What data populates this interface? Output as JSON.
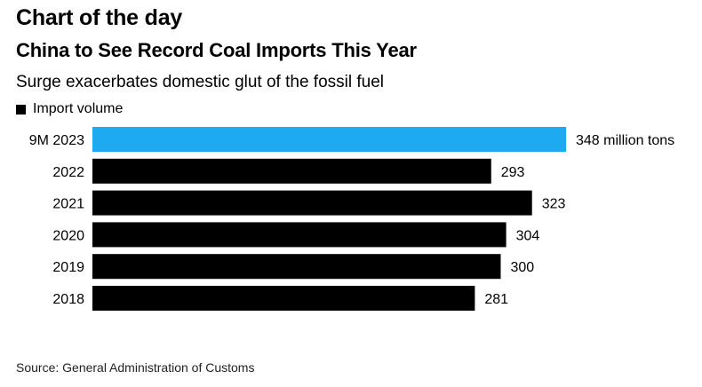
{
  "header": {
    "kicker": "Chart of the day",
    "title": "China to See Record Coal Imports This Year",
    "subtitle": "Surge exacerbates domestic glut of the fossil fuel"
  },
  "legend": {
    "label": "Import volume",
    "color": "#000000"
  },
  "chart_data": {
    "type": "bar",
    "orientation": "horizontal",
    "title": "China to See Record Coal Imports This Year",
    "subtitle": "Surge exacerbates domestic glut of the fossil fuel",
    "categories": [
      "9M 2023",
      "2022",
      "2021",
      "2020",
      "2019",
      "2018"
    ],
    "series": [
      {
        "name": "Import volume",
        "values": [
          348,
          293,
          323,
          304,
          300,
          281
        ]
      }
    ],
    "data_labels": [
      "348 million tons",
      "293",
      "323",
      "304",
      "300",
      "281"
    ],
    "bar_colors": [
      "#1eaaf1",
      "#000000",
      "#000000",
      "#000000",
      "#000000",
      "#000000"
    ],
    "xlim": [
      0,
      348
    ],
    "grid": false,
    "legend": "top-left"
  },
  "footer": {
    "source": "Source: General Administration of Customs"
  }
}
